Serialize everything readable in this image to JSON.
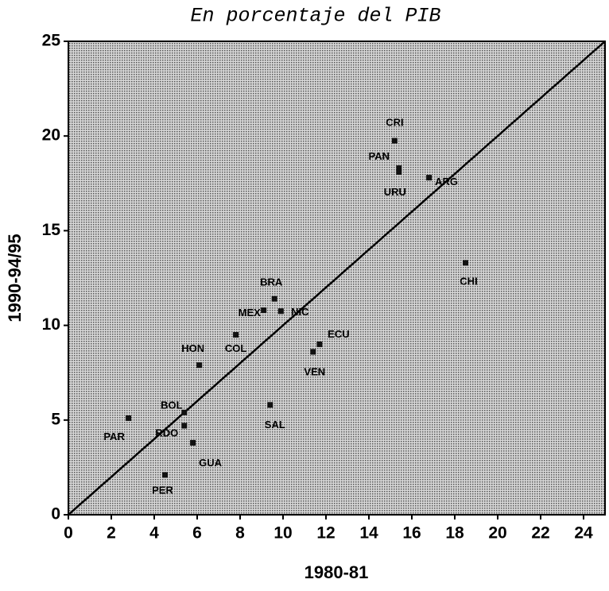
{
  "chart_data": {
    "type": "scatter",
    "title": "En porcentaje del PIB",
    "x_label": "1980-81",
    "y_label": "1990-94/95",
    "labels": [
      "CRI",
      "PAN",
      "URU",
      "ARG",
      "CHI",
      "BRA",
      "MEX",
      "NIC",
      "ECU",
      "VEN",
      "COL",
      "HON",
      "BOL",
      "RDO",
      "GUA",
      "PAR",
      "PER",
      "SAL"
    ],
    "x": [
      15.2,
      15.4,
      15.4,
      16.8,
      18.5,
      9.6,
      9.1,
      9.9,
      11.7,
      11.4,
      7.8,
      6.1,
      5.4,
      5.4,
      5.8,
      2.8,
      4.5,
      9.4
    ],
    "y": [
      19.75,
      18.3,
      18.1,
      17.8,
      13.3,
      11.4,
      10.8,
      10.75,
      9.0,
      8.6,
      9.5,
      7.9,
      5.4,
      4.7,
      3.8,
      5.1,
      2.1,
      5.8
    ],
    "color": "#111111",
    "xlim": [
      0,
      25
    ],
    "ylim": [
      0,
      25
    ],
    "xticks": [
      0,
      2,
      4,
      6,
      8,
      10,
      12,
      14,
      16,
      18,
      20,
      22,
      24
    ],
    "yticks": [
      0,
      5,
      10,
      15,
      20,
      25
    ]
  }
}
